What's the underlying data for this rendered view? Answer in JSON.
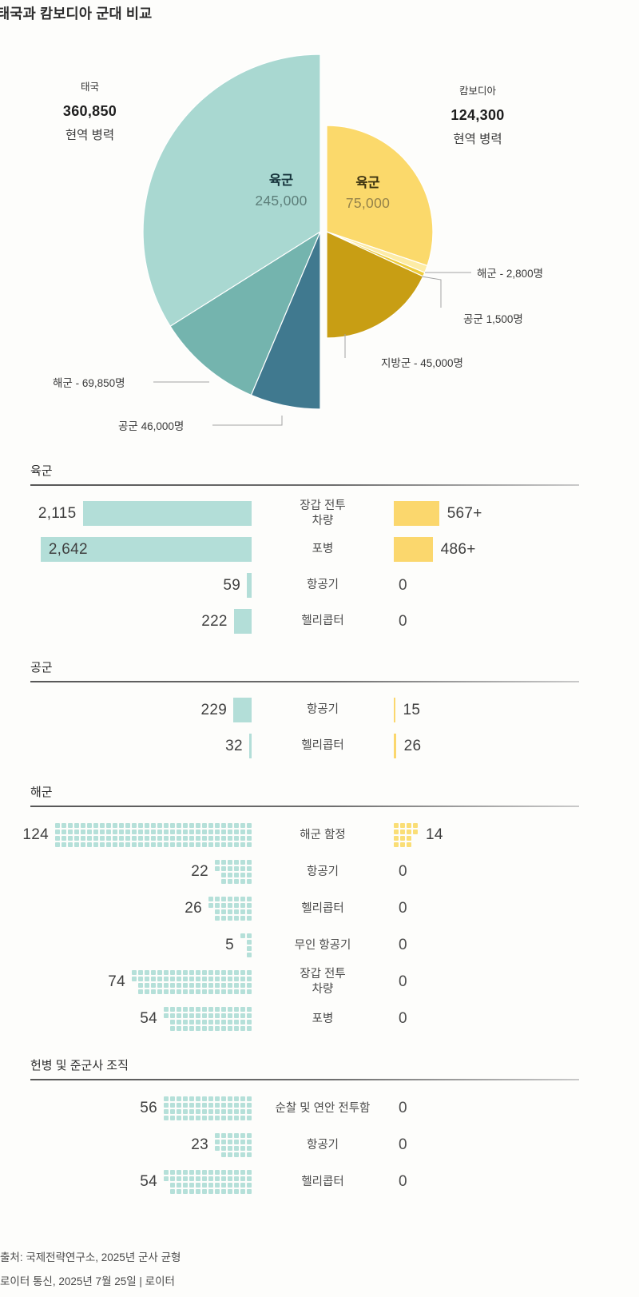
{
  "title": "태국과 캄보디아 군대 비교",
  "colors": {
    "thai_bar": "#b3ded8",
    "thai_cell": "#b5e0d9",
    "kh_bar": "#fbd76d",
    "kh_cell": "#fade76",
    "leader_line": "#a3a3a3",
    "rule": "#575757"
  },
  "pie": {
    "thailand": {
      "country": "태국",
      "total": "360,850",
      "sub": "현역 병력",
      "inner_label": "육군",
      "inner_value": "245,000",
      "slices": [
        {
          "name": "육군",
          "value": 245000,
          "color": "#a9d8d1"
        },
        {
          "name": "해군",
          "value": 69850,
          "color": "#74b4ae"
        },
        {
          "name": "공군",
          "value": 46000,
          "color": "#40798f"
        }
      ],
      "callouts": [
        {
          "text": "해군 - 69,850명"
        },
        {
          "text": "공군 46,000명"
        }
      ]
    },
    "cambodia": {
      "country": "캄보디아",
      "total": "124,300",
      "sub": "현역 병력",
      "inner_label": "육군",
      "inner_value": "75,000",
      "slices": [
        {
          "name": "육군",
          "value": 75000,
          "color": "#fbd96b"
        },
        {
          "name": "해군",
          "value": 2800,
          "color": "#fdeca6"
        },
        {
          "name": "공군",
          "value": 1500,
          "color": "#eecc3c"
        },
        {
          "name": "지방군",
          "value": 45000,
          "color": "#c89e14"
        }
      ],
      "callouts": [
        {
          "text": "해군 - 2,800명"
        },
        {
          "text": "공군 1,500명"
        },
        {
          "text": "지방군 - 45,000명"
        }
      ]
    }
  },
  "sections": [
    {
      "title": "육군",
      "type": "bar",
      "rows": [
        {
          "label": "장갑 전투\n차량",
          "th": 2115,
          "th_text": "2,115",
          "kh": 567,
          "kh_text": "567+"
        },
        {
          "label": "포병",
          "th": 2642,
          "th_text": "2,642",
          "th_inside": true,
          "kh": 486,
          "kh_text": "486+"
        },
        {
          "label": "항공기",
          "th": 59,
          "th_text": "59",
          "kh": 0,
          "kh_text": "0"
        },
        {
          "label": "헬리콥터",
          "th": 222,
          "th_text": "222",
          "kh": 0,
          "kh_text": "0"
        }
      ]
    },
    {
      "title": "공군",
      "type": "bar",
      "rows": [
        {
          "label": "항공기",
          "th": 229,
          "th_text": "229",
          "kh": 15,
          "kh_text": "15"
        },
        {
          "label": "헬리콥터",
          "th": 32,
          "th_text": "32",
          "kh": 26,
          "kh_text": "26"
        }
      ]
    },
    {
      "title": "해군",
      "type": "waffle",
      "rows": [
        {
          "label": "해군 함정",
          "th": 124,
          "th_text": "124",
          "kh": 14,
          "kh_text": "14"
        },
        {
          "label": "항공기",
          "th": 22,
          "th_text": "22",
          "kh": 0,
          "kh_text": "0"
        },
        {
          "label": "헬리콥터",
          "th": 26,
          "th_text": "26",
          "kh": 0,
          "kh_text": "0"
        },
        {
          "label": "무인 항공기",
          "th": 5,
          "th_text": "5",
          "kh": 0,
          "kh_text": "0"
        },
        {
          "label": "장갑 전투\n차량",
          "th": 74,
          "th_text": "74",
          "kh": 0,
          "kh_text": "0"
        },
        {
          "label": "포병",
          "th": 54,
          "th_text": "54",
          "kh": 0,
          "kh_text": "0"
        }
      ]
    },
    {
      "title": "헌병 및 준군사 조직",
      "type": "waffle",
      "rows": [
        {
          "label": "순찰 및 연안 전투함",
          "th": 56,
          "th_text": "56",
          "kh": 0,
          "kh_text": "0"
        },
        {
          "label": "항공기",
          "th": 23,
          "th_text": "23",
          "kh": 0,
          "kh_text": "0"
        },
        {
          "label": "헬리콥터",
          "th": 54,
          "th_text": "54",
          "kh": 0,
          "kh_text": "0"
        }
      ]
    }
  ],
  "footer": {
    "line1": "출처: 국제전략연구소, 2025년 군사 균형",
    "line2": "로이터 통신, 2025년 7월 25일 | 로이터"
  },
  "chart_data": [
    {
      "type": "pie",
      "title": "태국 현역 병력",
      "total": 360850,
      "labels": [
        "육군",
        "해군",
        "공군"
      ],
      "values": [
        245000,
        69850,
        46000
      ],
      "layout": "left half-circle, large radius"
    },
    {
      "type": "pie",
      "title": "캄보디아 현역 병력",
      "total": 124300,
      "labels": [
        "육군",
        "해군",
        "공군",
        "지방군"
      ],
      "values": [
        75000,
        2800,
        1500,
        45000
      ],
      "layout": "right half-circle, small radius"
    },
    {
      "type": "bar",
      "title": "육군",
      "categories": [
        "장갑 전투 차량",
        "포병",
        "항공기",
        "헬리콥터"
      ],
      "series": [
        {
          "name": "태국",
          "values": [
            2115,
            2642,
            59,
            222
          ]
        },
        {
          "name": "캄보디아",
          "values": [
            567,
            486,
            0,
            0
          ]
        }
      ],
      "value_labels": {
        "태국": [
          "2,115",
          "2,642",
          "59",
          "222"
        ],
        "캄보디아": [
          "567+",
          "486+",
          "0",
          "0"
        ]
      }
    },
    {
      "type": "bar",
      "title": "공군",
      "categories": [
        "항공기",
        "헬리콥터"
      ],
      "series": [
        {
          "name": "태국",
          "values": [
            229,
            32
          ]
        },
        {
          "name": "캄보디아",
          "values": [
            15,
            26
          ]
        }
      ]
    },
    {
      "type": "waffle",
      "title": "해군",
      "categories": [
        "해군 함정",
        "항공기",
        "헬리콥터",
        "무인 항공기",
        "장갑 전투 차량",
        "포병"
      ],
      "series": [
        {
          "name": "태국",
          "values": [
            124,
            22,
            26,
            5,
            74,
            54
          ]
        },
        {
          "name": "캄보디아",
          "values": [
            14,
            0,
            0,
            0,
            0,
            0
          ]
        }
      ]
    },
    {
      "type": "waffle",
      "title": "헌병 및 준군사 조직",
      "categories": [
        "순찰 및 연안 전투함",
        "항공기",
        "헬리콥터"
      ],
      "series": [
        {
          "name": "태국",
          "values": [
            56,
            23,
            54
          ]
        },
        {
          "name": "캄보디아",
          "values": [
            0,
            0,
            0
          ]
        }
      ]
    }
  ]
}
